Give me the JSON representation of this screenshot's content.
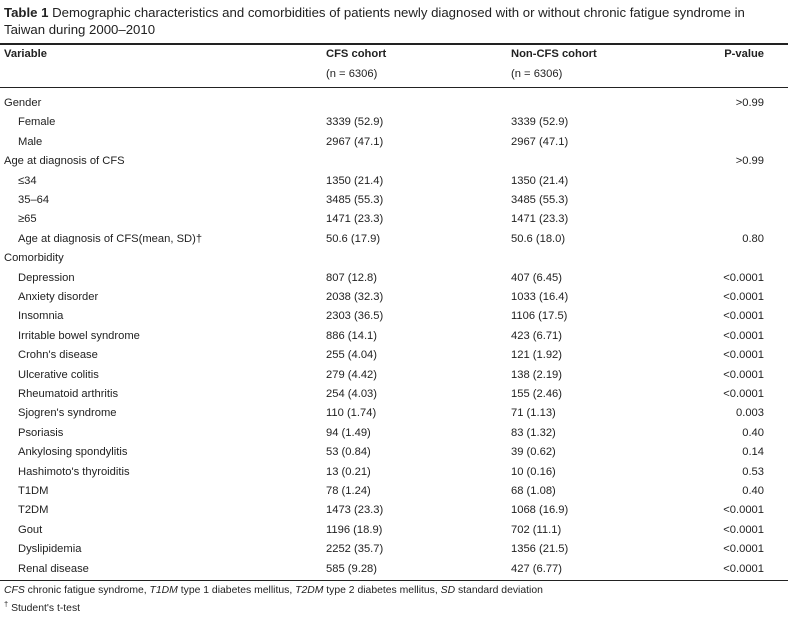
{
  "caption": {
    "label": "Table 1",
    "text": "Demographic characteristics and comorbidities of patients newly diagnosed with or without chronic fatigue syndrome in Taiwan during 2000–2010"
  },
  "header": {
    "variable": "Variable",
    "cfs_title": "CFS cohort",
    "cfs_n": "(n = 6306)",
    "noncfs_title": "Non-CFS cohort",
    "noncfs_n": "(n = 6306)",
    "pvalue": "P-value"
  },
  "rows": [
    {
      "label": "Gender",
      "cfs": "",
      "noncfs": "",
      "p": ">0.99",
      "indent": false
    },
    {
      "label": "Female",
      "cfs": "3339 (52.9)",
      "noncfs": "3339 (52.9)",
      "p": "",
      "indent": true
    },
    {
      "label": "Male",
      "cfs": "2967 (47.1)",
      "noncfs": "2967 (47.1)",
      "p": "",
      "indent": true
    },
    {
      "label": "Age at diagnosis of CFS",
      "cfs": "",
      "noncfs": "",
      "p": ">0.99",
      "indent": false
    },
    {
      "label": "≤34",
      "cfs": "1350 (21.4)",
      "noncfs": "1350 (21.4)",
      "p": "",
      "indent": true
    },
    {
      "label": "35–64",
      "cfs": "3485 (55.3)",
      "noncfs": "3485 (55.3)",
      "p": "",
      "indent": true
    },
    {
      "label": "≥65",
      "cfs": "1471 (23.3)",
      "noncfs": "1471 (23.3)",
      "p": "",
      "indent": true
    },
    {
      "label": "Age at diagnosis of CFS(mean, SD)†",
      "cfs": "50.6 (17.9)",
      "noncfs": "50.6 (18.0)",
      "p": "0.80",
      "indent": true
    },
    {
      "label": "Comorbidity",
      "cfs": "",
      "noncfs": "",
      "p": "",
      "indent": false
    },
    {
      "label": "Depression",
      "cfs": "807 (12.8)",
      "noncfs": "407 (6.45)",
      "p": "<0.0001",
      "indent": true
    },
    {
      "label": "Anxiety disorder",
      "cfs": "2038 (32.3)",
      "noncfs": "1033 (16.4)",
      "p": "<0.0001",
      "indent": true
    },
    {
      "label": "Insomnia",
      "cfs": "2303 (36.5)",
      "noncfs": "1106 (17.5)",
      "p": "<0.0001",
      "indent": true
    },
    {
      "label": "Irritable bowel syndrome",
      "cfs": "886 (14.1)",
      "noncfs": "423 (6.71)",
      "p": "<0.0001",
      "indent": true
    },
    {
      "label": "Crohn's disease",
      "cfs": "255 (4.04)",
      "noncfs": "121 (1.92)",
      "p": "<0.0001",
      "indent": true
    },
    {
      "label": "Ulcerative colitis",
      "cfs": "279 (4.42)",
      "noncfs": "138 (2.19)",
      "p": "<0.0001",
      "indent": true
    },
    {
      "label": "Rheumatoid arthritis",
      "cfs": "254 (4.03)",
      "noncfs": "155 (2.46)",
      "p": "<0.0001",
      "indent": true
    },
    {
      "label": "Sjogren's syndrome",
      "cfs": "110 (1.74)",
      "noncfs": "71 (1.13)",
      "p": "0.003",
      "indent": true
    },
    {
      "label": "Psoriasis",
      "cfs": "94 (1.49)",
      "noncfs": "83 (1.32)",
      "p": "0.40",
      "indent": true
    },
    {
      "label": "Ankylosing spondylitis",
      "cfs": "53 (0.84)",
      "noncfs": "39 (0.62)",
      "p": "0.14",
      "indent": true
    },
    {
      "label": "Hashimoto's thyroiditis",
      "cfs": "13 (0.21)",
      "noncfs": "10 (0.16)",
      "p": "0.53",
      "indent": true
    },
    {
      "label": "T1DM",
      "cfs": "78 (1.24)",
      "noncfs": "68 (1.08)",
      "p": "0.40",
      "indent": true
    },
    {
      "label": "T2DM",
      "cfs": "1473 (23.3)",
      "noncfs": "1068 (16.9)",
      "p": "<0.0001",
      "indent": true
    },
    {
      "label": "Gout",
      "cfs": "1196 (18.9)",
      "noncfs": "702 (11.1)",
      "p": "<0.0001",
      "indent": true
    },
    {
      "label": "Dyslipidemia",
      "cfs": "2252 (35.7)",
      "noncfs": "1356 (21.5)",
      "p": "<0.0001",
      "indent": true
    },
    {
      "label": "Renal disease",
      "cfs": "585 (9.28)",
      "noncfs": "427 (6.77)",
      "p": "<0.0001",
      "indent": true
    }
  ],
  "footnotes": {
    "abbr": [
      {
        "term": "CFS",
        "def": " chronic fatigue syndrome, "
      },
      {
        "term": "T1DM",
        "def": " type 1 diabetes mellitus, "
      },
      {
        "term": "T2DM",
        "def": " type 2 diabetes mellitus, "
      },
      {
        "term": "SD",
        "def": " standard deviation"
      }
    ],
    "dagger_mark": "†",
    "dagger_text": "Student's t-test"
  }
}
